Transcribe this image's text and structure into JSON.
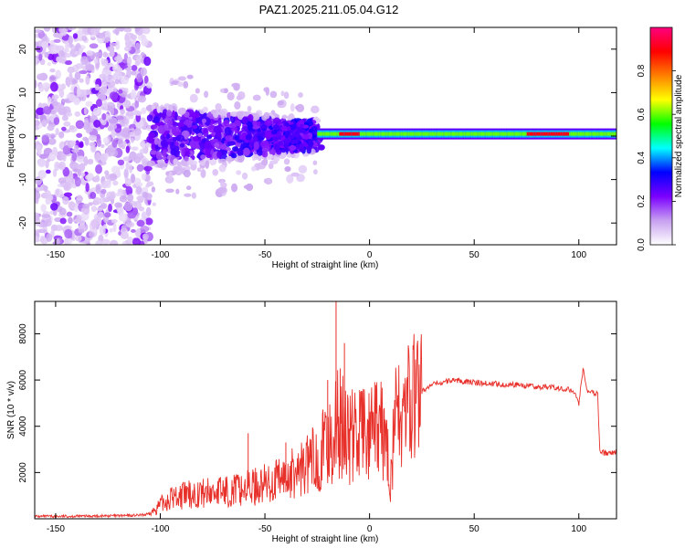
{
  "title": "PAZ1.2025.211.05.04.G12",
  "chart_data": [
    {
      "type": "heatmap",
      "xlabel": "Height of straight line (km)",
      "ylabel": "Frequency (Hz)",
      "xlim": [
        -160,
        118
      ],
      "ylim": [
        -25,
        25
      ],
      "xticks": [
        -150,
        -100,
        -50,
        0,
        50,
        100
      ],
      "yticks": [
        -20,
        -10,
        0,
        10,
        20
      ],
      "colorbar": {
        "label": "Normalized spectral amplitude",
        "range": [
          0,
          1
        ],
        "ticks": [
          0.0,
          0.2,
          0.4,
          0.6,
          0.8
        ],
        "colormap": "rainbow",
        "colors": [
          "#ffffff",
          "#c8a0f0",
          "#7b00ff",
          "#0000ff",
          "#00ffff",
          "#00ff00",
          "#ffff00",
          "#ff8000",
          "#ff0000",
          "#ff0080"
        ]
      },
      "zones": [
        {
          "x": [
            -160,
            -105
          ],
          "freq_spread_hz": 25,
          "amplitude": 0.08,
          "description": "diffuse noise"
        },
        {
          "x": [
            -105,
            -25
          ],
          "freq_spread_hz": 8,
          "amplitude": 0.2
        },
        {
          "x": [
            -25,
            118
          ],
          "center_freq_hz": 0.5,
          "amplitude": 0.6
        }
      ],
      "ridge_peaks": [
        {
          "x": [
            -15,
            -5
          ],
          "amplitude": 0.9
        },
        {
          "x": [
            75,
            95
          ],
          "amplitude": 0.9
        }
      ]
    },
    {
      "type": "line",
      "xlabel": "Height of straight line (km)",
      "ylabel": "SNR (10 * v/v)",
      "xlim": [
        -160,
        118
      ],
      "ylim": [
        0,
        9400
      ],
      "xticks": [
        -150,
        -100,
        -50,
        0,
        50,
        100
      ],
      "yticks": [
        2000,
        4000,
        6000,
        8000
      ],
      "grid": false,
      "series_color": "#e8302a",
      "x": [
        -160,
        -140,
        -120,
        -110,
        -105,
        -100,
        -95,
        -90,
        -85,
        -80,
        -75,
        -70,
        -65,
        -60,
        -55,
        -50,
        -45,
        -40,
        -35,
        -30,
        -25,
        -22,
        -20,
        -18,
        -16,
        -15,
        -14,
        -12,
        -10,
        -8,
        -6,
        -4,
        -2,
        0,
        2,
        4,
        6,
        8,
        10,
        12,
        15,
        20,
        25,
        30,
        35,
        40,
        45,
        50,
        55,
        60,
        65,
        70,
        75,
        80,
        85,
        90,
        95,
        98,
        100,
        102,
        104,
        106,
        108,
        109,
        110,
        112,
        115,
        118
      ],
      "y": [
        100,
        110,
        130,
        150,
        200,
        600,
        900,
        1000,
        1050,
        1100,
        1150,
        1200,
        1250,
        1300,
        1400,
        1500,
        1600,
        1800,
        2000,
        2300,
        2700,
        3000,
        3200,
        3500,
        4000,
        4200,
        4000,
        3800,
        3700,
        3500,
        3800,
        3900,
        3600,
        3500,
        3700,
        3800,
        3700,
        3300,
        1500,
        4200,
        4500,
        5000,
        5500,
        5800,
        5900,
        6000,
        5950,
        5900,
        5850,
        5850,
        5800,
        5800,
        5750,
        5700,
        5700,
        5650,
        5600,
        5500,
        5000,
        6500,
        5500,
        5500,
        5400,
        5400,
        2900,
        2850,
        2850,
        2900
      ],
      "spikes": [
        {
          "x": -58,
          "y": 3700
        },
        {
          "x": -40,
          "y": 3300
        },
        {
          "x": -20,
          "y": 6000
        },
        {
          "x": -16,
          "y": 9400
        },
        {
          "x": -14,
          "y": 6500
        },
        {
          "x": -12,
          "y": 7600
        }
      ]
    }
  ]
}
